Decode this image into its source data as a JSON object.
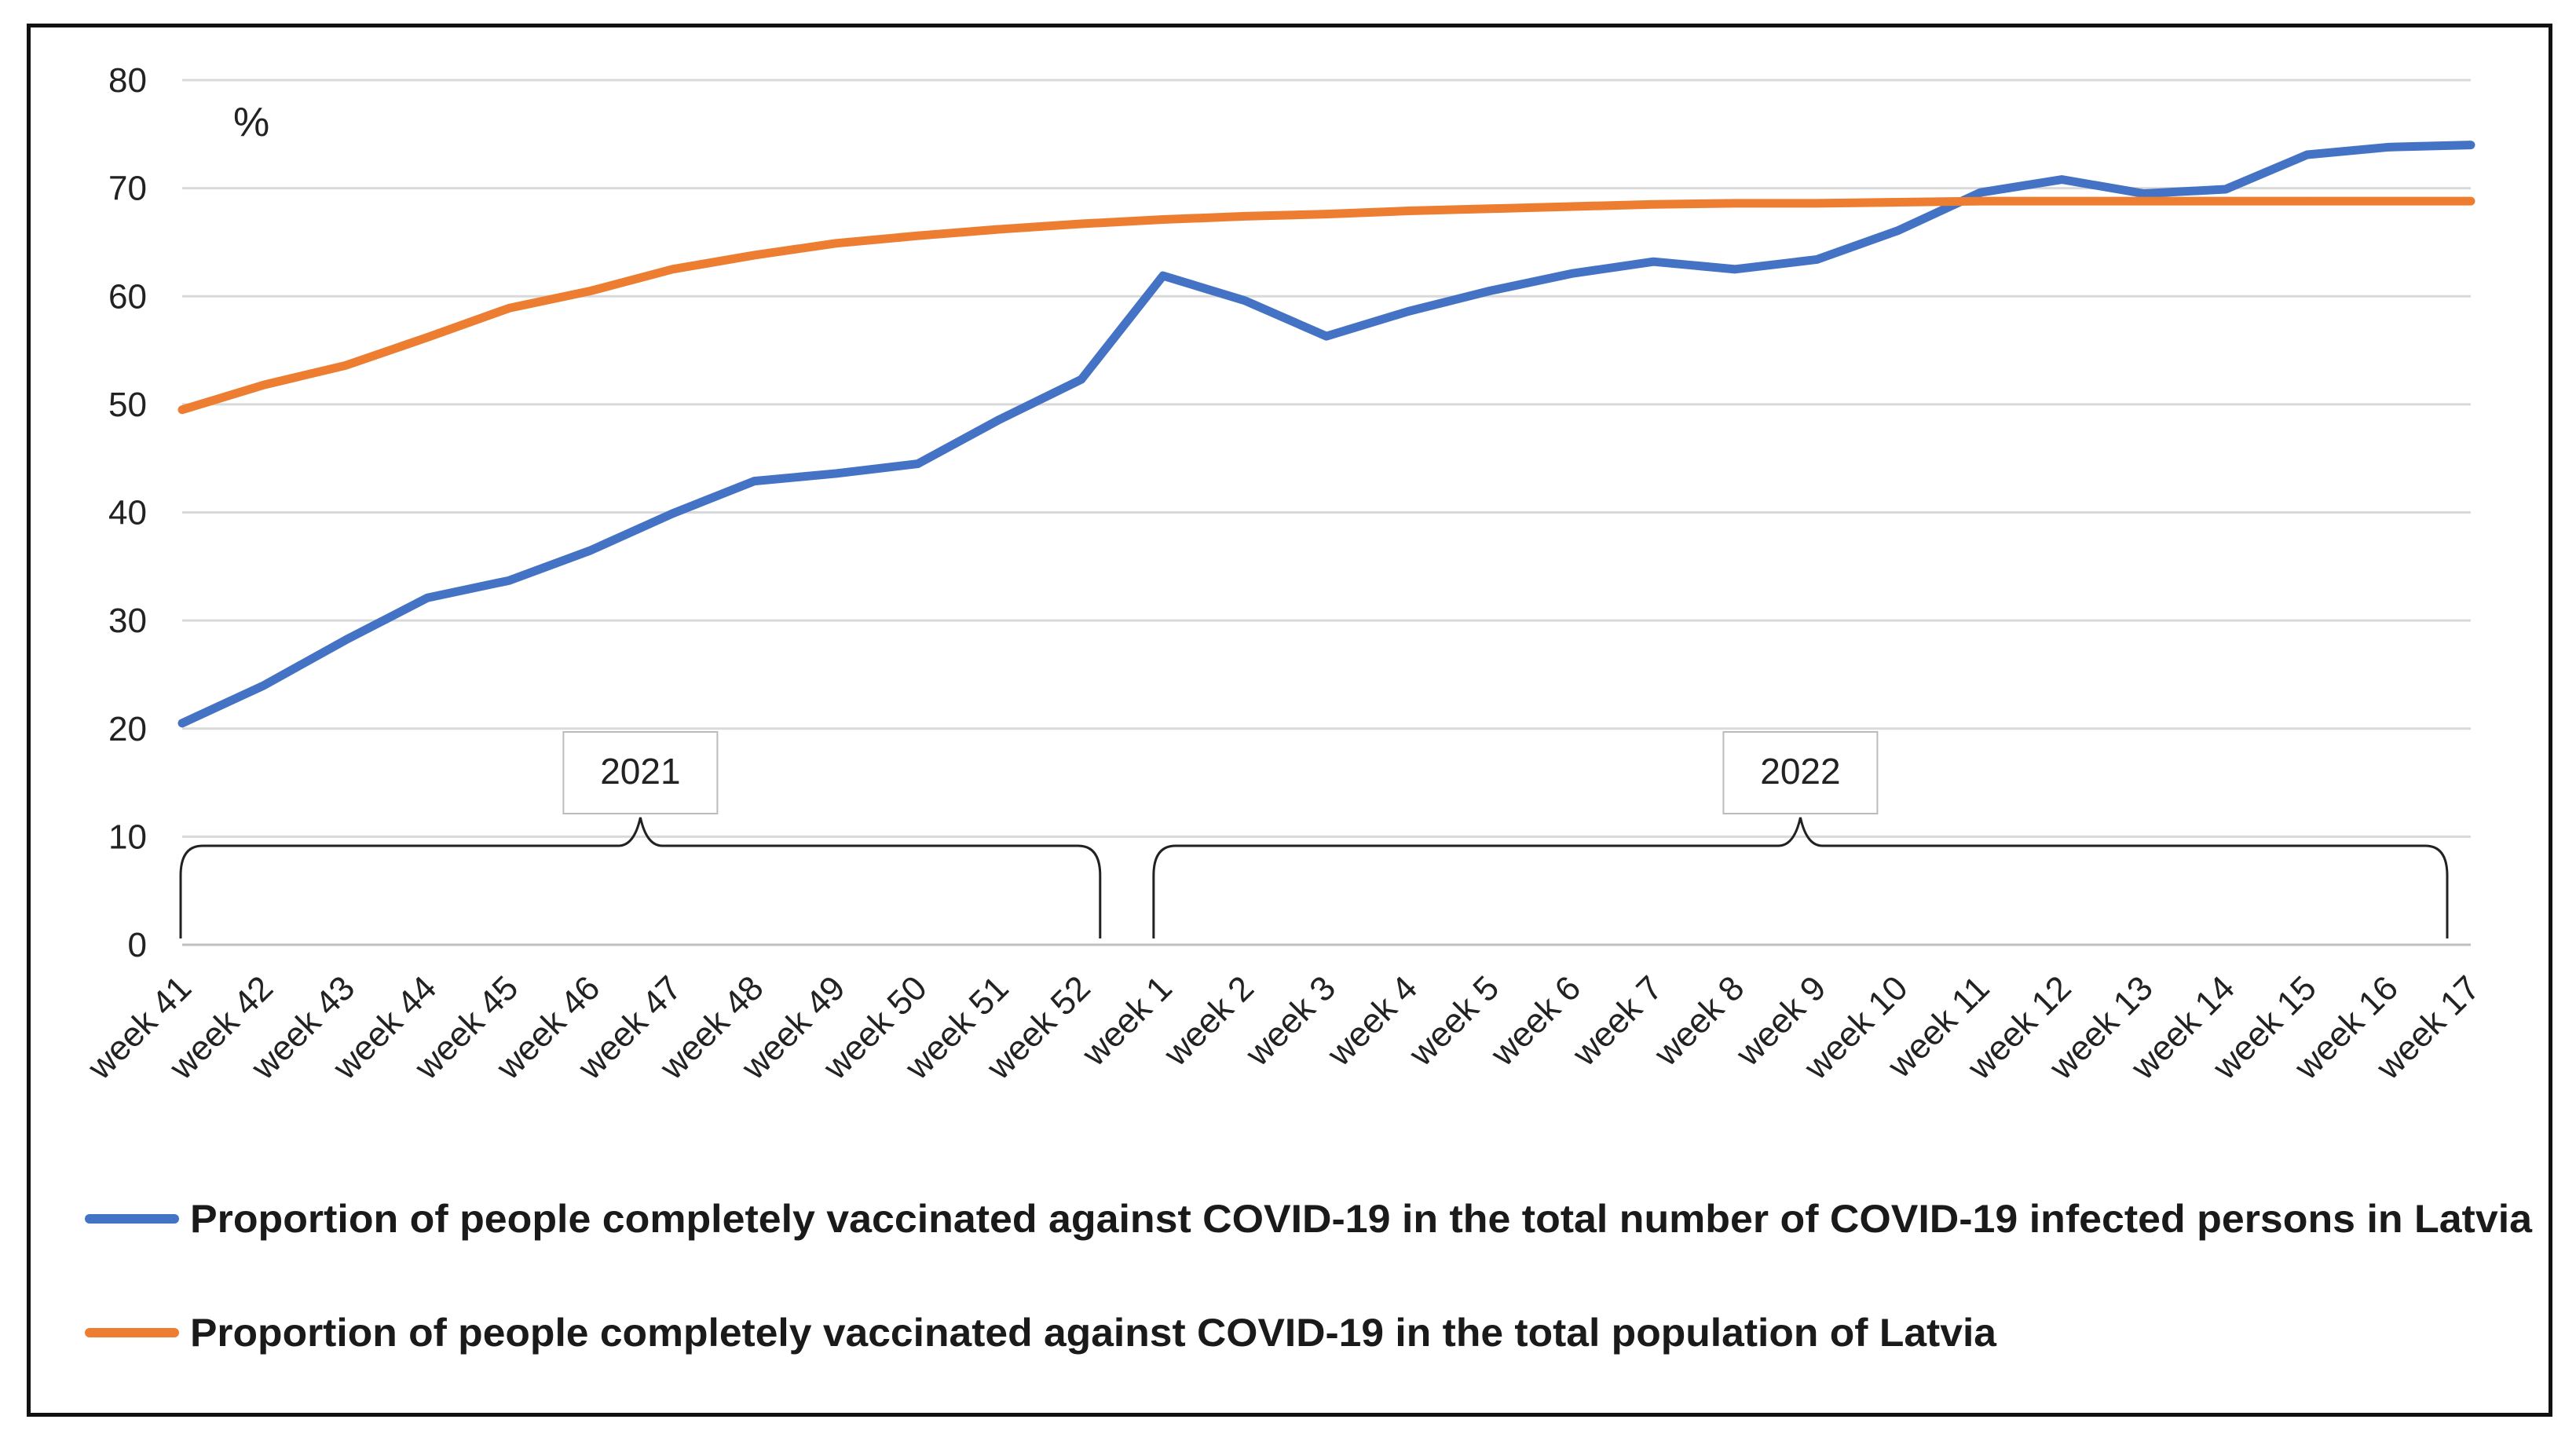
{
  "chart_data": {
    "type": "line",
    "title": "",
    "xlabel": "",
    "ylabel": "%",
    "ylim": [
      0,
      80
    ],
    "yticks": [
      0,
      10,
      20,
      30,
      40,
      50,
      60,
      70,
      80
    ],
    "grid": true,
    "legend_position": "bottom",
    "categories": [
      "week 41",
      "week 42",
      "week 43",
      "week 44",
      "week 45",
      "week 46",
      "week 47",
      "week 48",
      "week 49",
      "week 50",
      "week 51",
      "week 52",
      "week 1",
      "week 2",
      "week 3",
      "week 4",
      "week 5",
      "week 6",
      "week 7",
      "week 8",
      "week 9",
      "week 10",
      "week 11",
      "week 12",
      "week 13",
      "week 14",
      "week 15",
      "week 16",
      "week 17"
    ],
    "series": [
      {
        "name": "Proportion of people completely vaccinated against COVID-19 in the total number of COVID-19 infected persons in Latvia",
        "color": "#4472C4",
        "values": [
          20.5,
          24,
          28.2,
          32.1,
          33.7,
          36.5,
          39.9,
          42.9,
          43.6,
          44.5,
          48.6,
          52.3,
          61.9,
          59.6,
          56.3,
          58.6,
          60.5,
          62.1,
          63.2,
          62.5,
          63.4,
          66.1,
          69.6,
          70.8,
          69.5,
          69.9,
          73.1,
          73.8,
          74
        ]
      },
      {
        "name": "Proportion of people completely vaccinated against COVID-19 in the total population of Latvia",
        "color": "#ED7D31",
        "values": [
          49.5,
          51.8,
          53.6,
          56.2,
          58.9,
          60.5,
          62.5,
          63.8,
          64.9,
          65.6,
          66.2,
          66.7,
          67.1,
          67.4,
          67.6,
          67.9,
          68.1,
          68.3,
          68.5,
          68.6,
          68.6,
          68.7,
          68.8,
          68.8,
          68.8,
          68.8,
          68.8,
          68.8,
          68.8
        ]
      }
    ],
    "annotations": [
      {
        "label": "2021",
        "from": "week 41",
        "to": "week 52"
      },
      {
        "label": "2022",
        "from": "week 1",
        "to": "week 17"
      }
    ]
  }
}
